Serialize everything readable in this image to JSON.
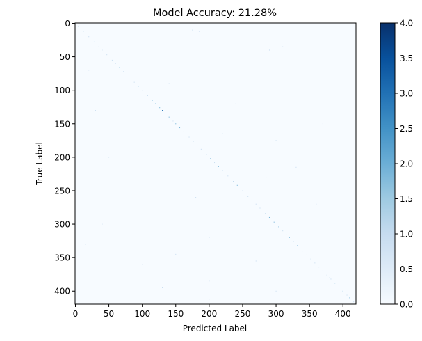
{
  "chart_data": {
    "type": "heatmap",
    "title": "Model Accuracy: 21.28%",
    "xlabel": "Predicted Label",
    "ylabel": "True Label",
    "n_classes": 420,
    "xlim": [
      0,
      420
    ],
    "ylim": [
      420,
      0
    ],
    "x_ticks": [
      0,
      50,
      100,
      150,
      200,
      250,
      300,
      350,
      400
    ],
    "y_ticks": [
      0,
      50,
      100,
      150,
      200,
      250,
      300,
      350,
      400
    ],
    "colormap": "Blues",
    "color_range": [
      0.0,
      4.0
    ],
    "colorbar_ticks": [
      "0.0",
      "0.5",
      "1.0",
      "1.5",
      "2.0",
      "2.5",
      "3.0",
      "3.5",
      "4.0"
    ],
    "colors": {
      "low": "#f7fbff",
      "high": "#08306b"
    },
    "diagonal_cells": [
      [
        5,
        5,
        2
      ],
      [
        12,
        12,
        1
      ],
      [
        20,
        20,
        1
      ],
      [
        28,
        28,
        2
      ],
      [
        35,
        35,
        1
      ],
      [
        40,
        40,
        1
      ],
      [
        47,
        47,
        1
      ],
      [
        55,
        55,
        1
      ],
      [
        60,
        60,
        1
      ],
      [
        66,
        66,
        2
      ],
      [
        72,
        72,
        1
      ],
      [
        80,
        80,
        1
      ],
      [
        88,
        88,
        1
      ],
      [
        94,
        94,
        2
      ],
      [
        100,
        100,
        1
      ],
      [
        108,
        108,
        1
      ],
      [
        115,
        115,
        2
      ],
      [
        120,
        120,
        2
      ],
      [
        126,
        126,
        2
      ],
      [
        130,
        130,
        3
      ],
      [
        134,
        134,
        2
      ],
      [
        140,
        140,
        2
      ],
      [
        146,
        146,
        1
      ],
      [
        150,
        150,
        2
      ],
      [
        156,
        156,
        2
      ],
      [
        162,
        162,
        1
      ],
      [
        170,
        170,
        1
      ],
      [
        176,
        176,
        3
      ],
      [
        182,
        182,
        2
      ],
      [
        188,
        188,
        1
      ],
      [
        196,
        196,
        1
      ],
      [
        202,
        202,
        2
      ],
      [
        208,
        208,
        1
      ],
      [
        214,
        214,
        2
      ],
      [
        220,
        220,
        1
      ],
      [
        228,
        228,
        1
      ],
      [
        236,
        236,
        1
      ],
      [
        242,
        242,
        2
      ],
      [
        250,
        250,
        1
      ],
      [
        258,
        258,
        3
      ],
      [
        264,
        264,
        2
      ],
      [
        270,
        270,
        1
      ],
      [
        276,
        276,
        1
      ],
      [
        284,
        284,
        1
      ],
      [
        290,
        290,
        2
      ],
      [
        297,
        297,
        2
      ],
      [
        304,
        304,
        2
      ],
      [
        310,
        310,
        1
      ],
      [
        316,
        316,
        1
      ],
      [
        320,
        320,
        2
      ],
      [
        326,
        326,
        1
      ],
      [
        332,
        332,
        2
      ],
      [
        340,
        340,
        1
      ],
      [
        346,
        346,
        1
      ],
      [
        352,
        352,
        1
      ],
      [
        358,
        358,
        1
      ],
      [
        364,
        364,
        1
      ],
      [
        370,
        370,
        2
      ],
      [
        376,
        376,
        1
      ],
      [
        382,
        382,
        1
      ],
      [
        388,
        388,
        2
      ],
      [
        394,
        394,
        1
      ],
      [
        400,
        400,
        2
      ],
      [
        406,
        406,
        1
      ],
      [
        410,
        410,
        2
      ],
      [
        416,
        416,
        1
      ]
    ],
    "off_diagonal_cells": [
      [
        175,
        10,
        1
      ],
      [
        185,
        12,
        1
      ],
      [
        310,
        35,
        1
      ],
      [
        290,
        40,
        1
      ],
      [
        20,
        70,
        1
      ],
      [
        140,
        90,
        1
      ],
      [
        240,
        120,
        1
      ],
      [
        30,
        130,
        1
      ],
      [
        370,
        150,
        1
      ],
      [
        220,
        165,
        1
      ],
      [
        300,
        175,
        1
      ],
      [
        50,
        200,
        1
      ],
      [
        140,
        210,
        1
      ],
      [
        330,
        215,
        1
      ],
      [
        285,
        230,
        1
      ],
      [
        80,
        240,
        1
      ],
      [
        180,
        260,
        1
      ],
      [
        360,
        270,
        1
      ],
      [
        40,
        300,
        1
      ],
      [
        200,
        320,
        1
      ],
      [
        15,
        330,
        1
      ],
      [
        250,
        340,
        1
      ],
      [
        150,
        345,
        1
      ],
      [
        100,
        360,
        1
      ],
      [
        270,
        355,
        1
      ],
      [
        380,
        380,
        1
      ],
      [
        200,
        385,
        1
      ],
      [
        130,
        395,
        1
      ],
      [
        300,
        400,
        1
      ],
      [
        200,
        412,
        1
      ]
    ]
  }
}
